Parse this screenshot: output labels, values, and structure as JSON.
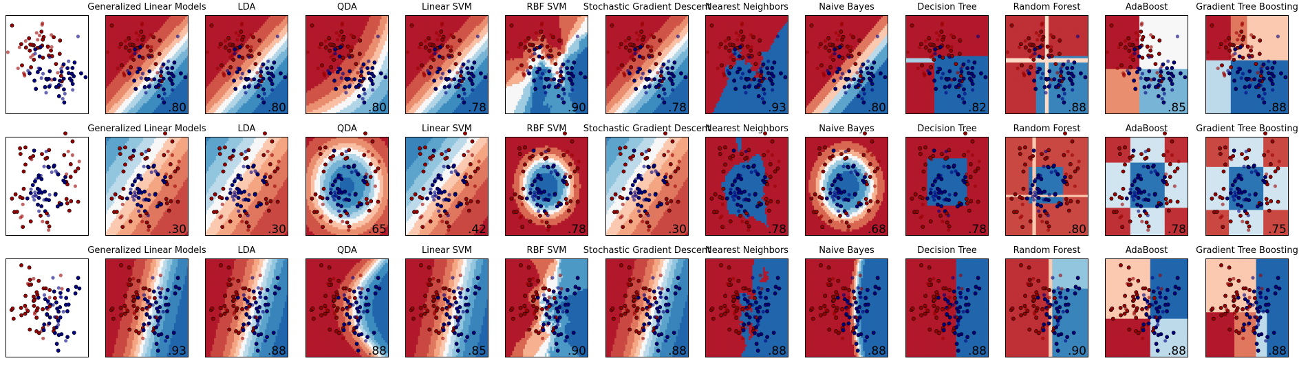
{
  "figure": {
    "classifiers": [
      "Generalized Linear Models",
      "LDA",
      "QDA",
      "Linear SVM",
      "RBF SVM",
      "Stochastic Gradient Descent",
      "Nearest Neighbors",
      "Naive Bayes",
      "Decision Tree",
      "Random Forest",
      "AdaBoost",
      "Gradient Tree Boosting"
    ],
    "datasets": [
      {
        "scores": [
          ".80",
          ".80",
          ".80",
          ".78",
          ".90",
          ".78",
          ".93",
          ".80",
          ".82",
          ".88",
          ".85",
          ".88"
        ]
      },
      {
        "scores": [
          ".30",
          ".30",
          ".65",
          ".42",
          ".78",
          ".30",
          ".78",
          ".68",
          ".78",
          ".80",
          ".78",
          ".75"
        ]
      },
      {
        "scores": [
          ".93",
          ".88",
          ".88",
          ".85",
          ".90",
          ".88",
          ".88",
          ".88",
          ".88",
          ".90",
          ".88",
          ".88"
        ]
      }
    ]
  },
  "chart_data": {
    "type": "scatter",
    "colors": {
      "class_0": "#990000",
      "class_1": "#000080",
      "map_red": "#b2182b",
      "map_blue": "#2166ac",
      "map_mid": "#f7f7f7"
    },
    "rows": [
      {
        "dataset": "moons",
        "scores": [
          0.8,
          0.8,
          0.8,
          0.78,
          0.9,
          0.78,
          0.93,
          0.8,
          0.82,
          0.88,
          0.85,
          0.88
        ]
      },
      {
        "dataset": "circles",
        "scores": [
          0.3,
          0.3,
          0.65,
          0.42,
          0.78,
          0.3,
          0.78,
          0.68,
          0.78,
          0.8,
          0.78,
          0.75
        ]
      },
      {
        "dataset": "linearly_separable",
        "scores": [
          0.93,
          0.88,
          0.88,
          0.85,
          0.9,
          0.88,
          0.88,
          0.88,
          0.88,
          0.9,
          0.88,
          0.88
        ]
      }
    ]
  }
}
